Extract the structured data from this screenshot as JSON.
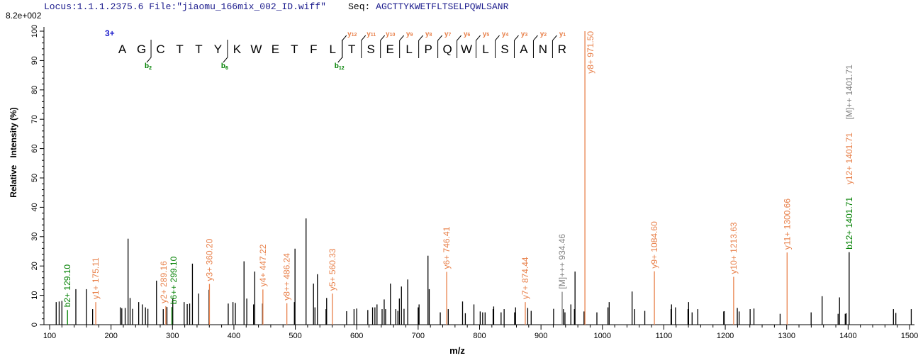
{
  "header": {
    "locus": "Locus:1.1.1.2375.6",
    "file": "File:\"jiaomu_166mix_002_ID.wiff\"",
    "seq_label": "Seq:",
    "seq": "AGCTTYKWETFLTSELPQWLSANR"
  },
  "scale_label": "8.2e+002",
  "colors": {
    "y_ion": "#e8804a",
    "b_ion": "#008000",
    "precursor": "#808080",
    "peak": "#000000",
    "title": "#1a1a8c"
  },
  "peptide": {
    "charge": "3+",
    "residues": [
      "A",
      "G",
      "C",
      "T",
      "T",
      "Y",
      "K",
      "W",
      "E",
      "T",
      "F",
      "L",
      "T",
      "S",
      "E",
      "L",
      "P",
      "Q",
      "W",
      "L",
      "S",
      "A",
      "N",
      "R"
    ],
    "b_ions": [
      {
        "n": 2,
        "label": "b2"
      },
      {
        "n": 6,
        "label": "b6"
      },
      {
        "n": 12,
        "label": "b12"
      }
    ],
    "y_ions": [
      {
        "n": 12,
        "label": "y12"
      },
      {
        "n": 11,
        "label": "y11"
      },
      {
        "n": 10,
        "label": "y10"
      },
      {
        "n": 9,
        "label": "y9"
      },
      {
        "n": 8,
        "label": "y8"
      },
      {
        "n": 7,
        "label": "y7"
      },
      {
        "n": 6,
        "label": "y6"
      },
      {
        "n": 5,
        "label": "y5"
      },
      {
        "n": 4,
        "label": "y4"
      },
      {
        "n": 3,
        "label": "y3"
      },
      {
        "n": 2,
        "label": "y2"
      },
      {
        "n": 1,
        "label": "y1"
      }
    ]
  },
  "chart_data": {
    "type": "bar",
    "title": "",
    "xlabel": "m/z",
    "ylabel": "Relative   Intensity (%)",
    "xlim": [
      100,
      1500
    ],
    "ylim": [
      0,
      100
    ],
    "xticks": [
      100,
      200,
      300,
      400,
      500,
      600,
      700,
      800,
      900,
      1000,
      1100,
      1200,
      1300,
      1400,
      1500
    ],
    "yticks": [
      0,
      10,
      20,
      30,
      40,
      50,
      60,
      70,
      80,
      90,
      100
    ],
    "grid": false,
    "peaks": [
      [
        110.7,
        7.7
      ],
      [
        115.5,
        7.9
      ],
      [
        120,
        8.1
      ],
      [
        142.7,
        12.1
      ],
      [
        160,
        12.1
      ],
      [
        170,
        5.3
      ],
      [
        215,
        5.9
      ],
      [
        217.5,
        5.6
      ],
      [
        223,
        5.7
      ],
      [
        227.7,
        29.3
      ],
      [
        231,
        9.1
      ],
      [
        235,
        5.4
      ],
      [
        245,
        7.7
      ],
      [
        251,
        6.9
      ],
      [
        256,
        5.9
      ],
      [
        260,
        5.4
      ],
      [
        274,
        15
      ],
      [
        285,
        5.3
      ],
      [
        291,
        6
      ],
      [
        300.5,
        9
      ],
      [
        319,
        7.7
      ],
      [
        324,
        7
      ],
      [
        328,
        7.2
      ],
      [
        332.5,
        20.8
      ],
      [
        342.7,
        10.6
      ],
      [
        359.5,
        11.9
      ],
      [
        390.8,
        7.2
      ],
      [
        398.5,
        7.7
      ],
      [
        402.4,
        7.4
      ],
      [
        416.5,
        21.6
      ],
      [
        421,
        8.9
      ],
      [
        432,
        6.9
      ],
      [
        434,
        18.1
      ],
      [
        446.6,
        7.2
      ],
      [
        498.5,
        7.7
      ],
      [
        499.5,
        25.9
      ],
      [
        517.5,
        36.2
      ],
      [
        529.6,
        14
      ],
      [
        532,
        5.9
      ],
      [
        536,
        17.2
      ],
      [
        550,
        5.3
      ],
      [
        551,
        9.1
      ],
      [
        583.5,
        4.6
      ],
      [
        595.6,
        5.3
      ],
      [
        600,
        5.5
      ],
      [
        618,
        5
      ],
      [
        625.8,
        5.9
      ],
      [
        629.6,
        5.9
      ],
      [
        633,
        6.9
      ],
      [
        641.3,
        5.3
      ],
      [
        644.7,
        8.6
      ],
      [
        647,
        5.3
      ],
      [
        654.9,
        14
      ],
      [
        663.6,
        5.3
      ],
      [
        667,
        4.7
      ],
      [
        669.4,
        8.9
      ],
      [
        672.8,
        13
      ],
      [
        677,
        5.4
      ],
      [
        683,
        15.4
      ],
      [
        700,
        5.9
      ],
      [
        701.5,
        6.9
      ],
      [
        716,
        23.5
      ],
      [
        718,
        12.1
      ],
      [
        736,
        4.2
      ],
      [
        749,
        5.3
      ],
      [
        772.3,
        7.9
      ],
      [
        776.8,
        3.9
      ],
      [
        790.8,
        6.9
      ],
      [
        801,
        4.5
      ],
      [
        805,
        4.2
      ],
      [
        809,
        4.2
      ],
      [
        822,
        5.3
      ],
      [
        823,
        6.2
      ],
      [
        835,
        4.2
      ],
      [
        840,
        5.3
      ],
      [
        857,
        4.2
      ],
      [
        858.6,
        5.9
      ],
      [
        878.4,
        5.7
      ],
      [
        884,
        4.7
      ],
      [
        920.5,
        5.4
      ],
      [
        936.5,
        5.3
      ],
      [
        939,
        4.2
      ],
      [
        948.6,
        6.9
      ],
      [
        954.4,
        5.3
      ],
      [
        955.4,
        18.1
      ],
      [
        970,
        4.5
      ],
      [
        991,
        4.2
      ],
      [
        1009,
        5.9
      ],
      [
        1011,
        7.7
      ],
      [
        1048.3,
        11.3
      ],
      [
        1052.6,
        5.3
      ],
      [
        1069,
        4.7
      ],
      [
        1111.7,
        5.3
      ],
      [
        1112.5,
        6.9
      ],
      [
        1119,
        5.9
      ],
      [
        1139.3,
        5.3
      ],
      [
        1140.3,
        7.7
      ],
      [
        1146,
        4.2
      ],
      [
        1155.3,
        5.3
      ],
      [
        1197.4,
        4.5
      ],
      [
        1198.3,
        4.6
      ],
      [
        1219.6,
        5.7
      ],
      [
        1222.6,
        4.5
      ],
      [
        1240.5,
        5.3
      ],
      [
        1246.7,
        5.5
      ],
      [
        1289.3,
        3.7
      ],
      [
        1339.8,
        4.2
      ],
      [
        1357.7,
        9.7
      ],
      [
        1383.7,
        3.7
      ],
      [
        1386,
        9.3
      ],
      [
        1395.3,
        3.7
      ],
      [
        1396.8,
        3.9
      ],
      [
        1473.8,
        5.3
      ],
      [
        1477.7,
        4
      ],
      [
        1502.8,
        5.3
      ]
    ],
    "annotations": [
      {
        "label": "b2+ 129.10",
        "mz": 129.1,
        "intensity": 5.0,
        "type": "b_ion"
      },
      {
        "label": "y1+ 175.11",
        "mz": 175.11,
        "intensity": 7.7,
        "type": "y_ion"
      },
      {
        "label": "y2+ 289.16",
        "mz": 289.16,
        "intensity": 6.3,
        "type": "y_ion"
      },
      {
        "label": "b6++ 299.10",
        "mz": 299.1,
        "intensity": 6.0,
        "type": "b_ion"
      },
      {
        "label": "y3+ 360.20",
        "mz": 360.2,
        "intensity": 13.9,
        "type": "y_ion"
      },
      {
        "label": "y4+ 447.22",
        "mz": 447.22,
        "intensity": 12.0,
        "type": "y_ion"
      },
      {
        "label": "y8++ 486.24",
        "mz": 486.24,
        "intensity": 7.3,
        "type": "y_ion"
      },
      {
        "label": "y5+ 560.33",
        "mz": 560.33,
        "intensity": 10.6,
        "type": "y_ion"
      },
      {
        "label": "y6+ 746.41",
        "mz": 746.41,
        "intensity": 18.0,
        "type": "y_ion"
      },
      {
        "label": "y7+ 874.44",
        "mz": 874.44,
        "intensity": 7.7,
        "type": "y_ion"
      },
      {
        "label": "[M]+++ 934.46",
        "mz": 934.46,
        "intensity": 11.2,
        "type": "precursor"
      },
      {
        "label": "y8+ 971.50",
        "mz": 971.5,
        "intensity": 100,
        "type": "y_ion"
      },
      {
        "label": "y9+ 1084.60",
        "mz": 1084.6,
        "intensity": 18.2,
        "type": "y_ion"
      },
      {
        "label": "y10+ 1213.63",
        "mz": 1213.63,
        "intensity": 16.3,
        "type": "y_ion"
      },
      {
        "label": "y11+ 1300.66",
        "mz": 1300.66,
        "intensity": 24.6,
        "type": "y_ion"
      },
      {
        "label": "b12+ 1401.71",
        "mz": 1401.71,
        "intensity": 24.7,
        "type": "b_ion",
        "line": "peak"
      },
      {
        "label": "y12+ 1401.71",
        "mz": 1401.71,
        "intensity": 24.7,
        "type": "y_ion",
        "line": "none"
      },
      {
        "label": "[M]++ 1401.71",
        "mz": 1401.71,
        "intensity": 24.7,
        "type": "precursor",
        "line": "none"
      }
    ]
  }
}
